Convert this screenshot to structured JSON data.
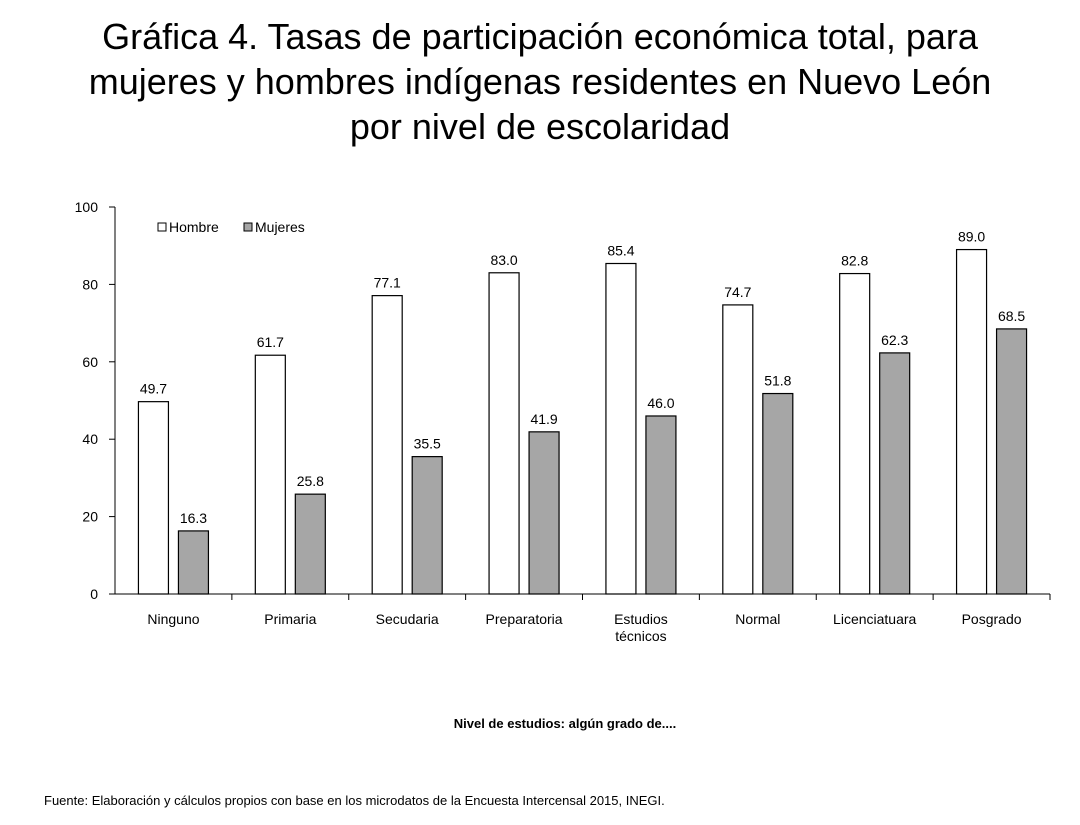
{
  "title_lines": [
    "Gráfica 4. Tasas de participación económica total, para",
    "mujeres y hombres indígenas residentes en Nuevo León",
    "por nivel de escolaridad"
  ],
  "source": "Fuente: Elaboración y cálculos propios con base en los microdatos de la Encuesta Intercensal 2015, INEGI.",
  "chart_data": {
    "type": "bar",
    "title": "Gráfica 4. Tasas de participación económica total, para mujeres y hombres indígenas residentes en Nuevo León por nivel de escolaridad",
    "xlabel": "Nivel de estudios: algún grado de....",
    "ylabel": "",
    "ylim": [
      0,
      100
    ],
    "yticks": [
      0,
      20,
      40,
      60,
      80,
      100
    ],
    "grid": false,
    "legend_position": "top-left",
    "categories": [
      [
        "Ninguno"
      ],
      [
        "Primaria"
      ],
      [
        "Secudaria"
      ],
      [
        "Preparatoria"
      ],
      [
        "Estudios",
        "técnicos"
      ],
      [
        "Normal"
      ],
      [
        "Licenciatuara"
      ],
      [
        "Posgrado"
      ]
    ],
    "series": [
      {
        "name": "Hombre",
        "color": "#ffffff",
        "values": [
          49.7,
          61.7,
          77.1,
          83.0,
          85.4,
          74.7,
          82.8,
          89.0
        ],
        "labels": [
          "49.7",
          "61.7",
          "77.1",
          "83.0",
          "85.4",
          "74.7",
          "82.8",
          "89.0"
        ]
      },
      {
        "name": "Mujeres",
        "color": "#a6a6a6",
        "values": [
          16.3,
          25.8,
          35.5,
          41.9,
          46.0,
          51.8,
          62.3,
          68.5
        ],
        "labels": [
          "16.3",
          "25.8",
          "35.5",
          "41.9",
          "46.0",
          "51.8",
          "62.3",
          "68.5"
        ]
      }
    ]
  }
}
